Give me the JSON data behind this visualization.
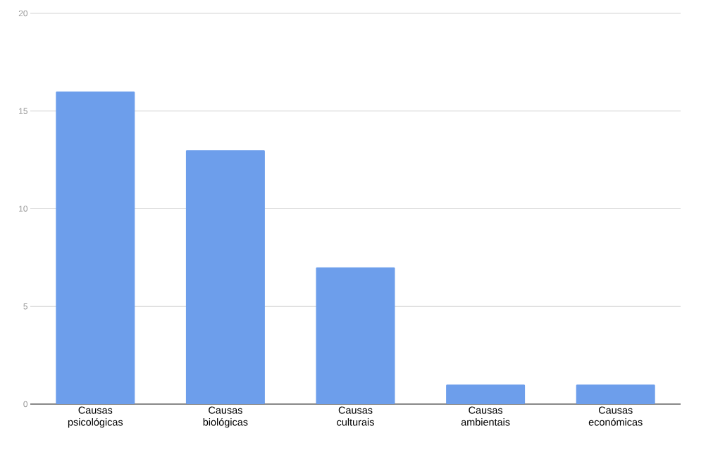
{
  "chart_data": {
    "type": "bar",
    "categories": [
      "Causas psicológicas",
      "Causas biológicas",
      "Causas culturais",
      "Causas ambientais",
      "Causas económicas"
    ],
    "series": [
      {
        "color": "#6d9eeb",
        "values": [
          16,
          13,
          7,
          1,
          1
        ]
      }
    ],
    "ylim": [
      0,
      20
    ],
    "yticks": [
      0,
      5,
      10,
      15,
      20
    ],
    "grid": "y"
  }
}
